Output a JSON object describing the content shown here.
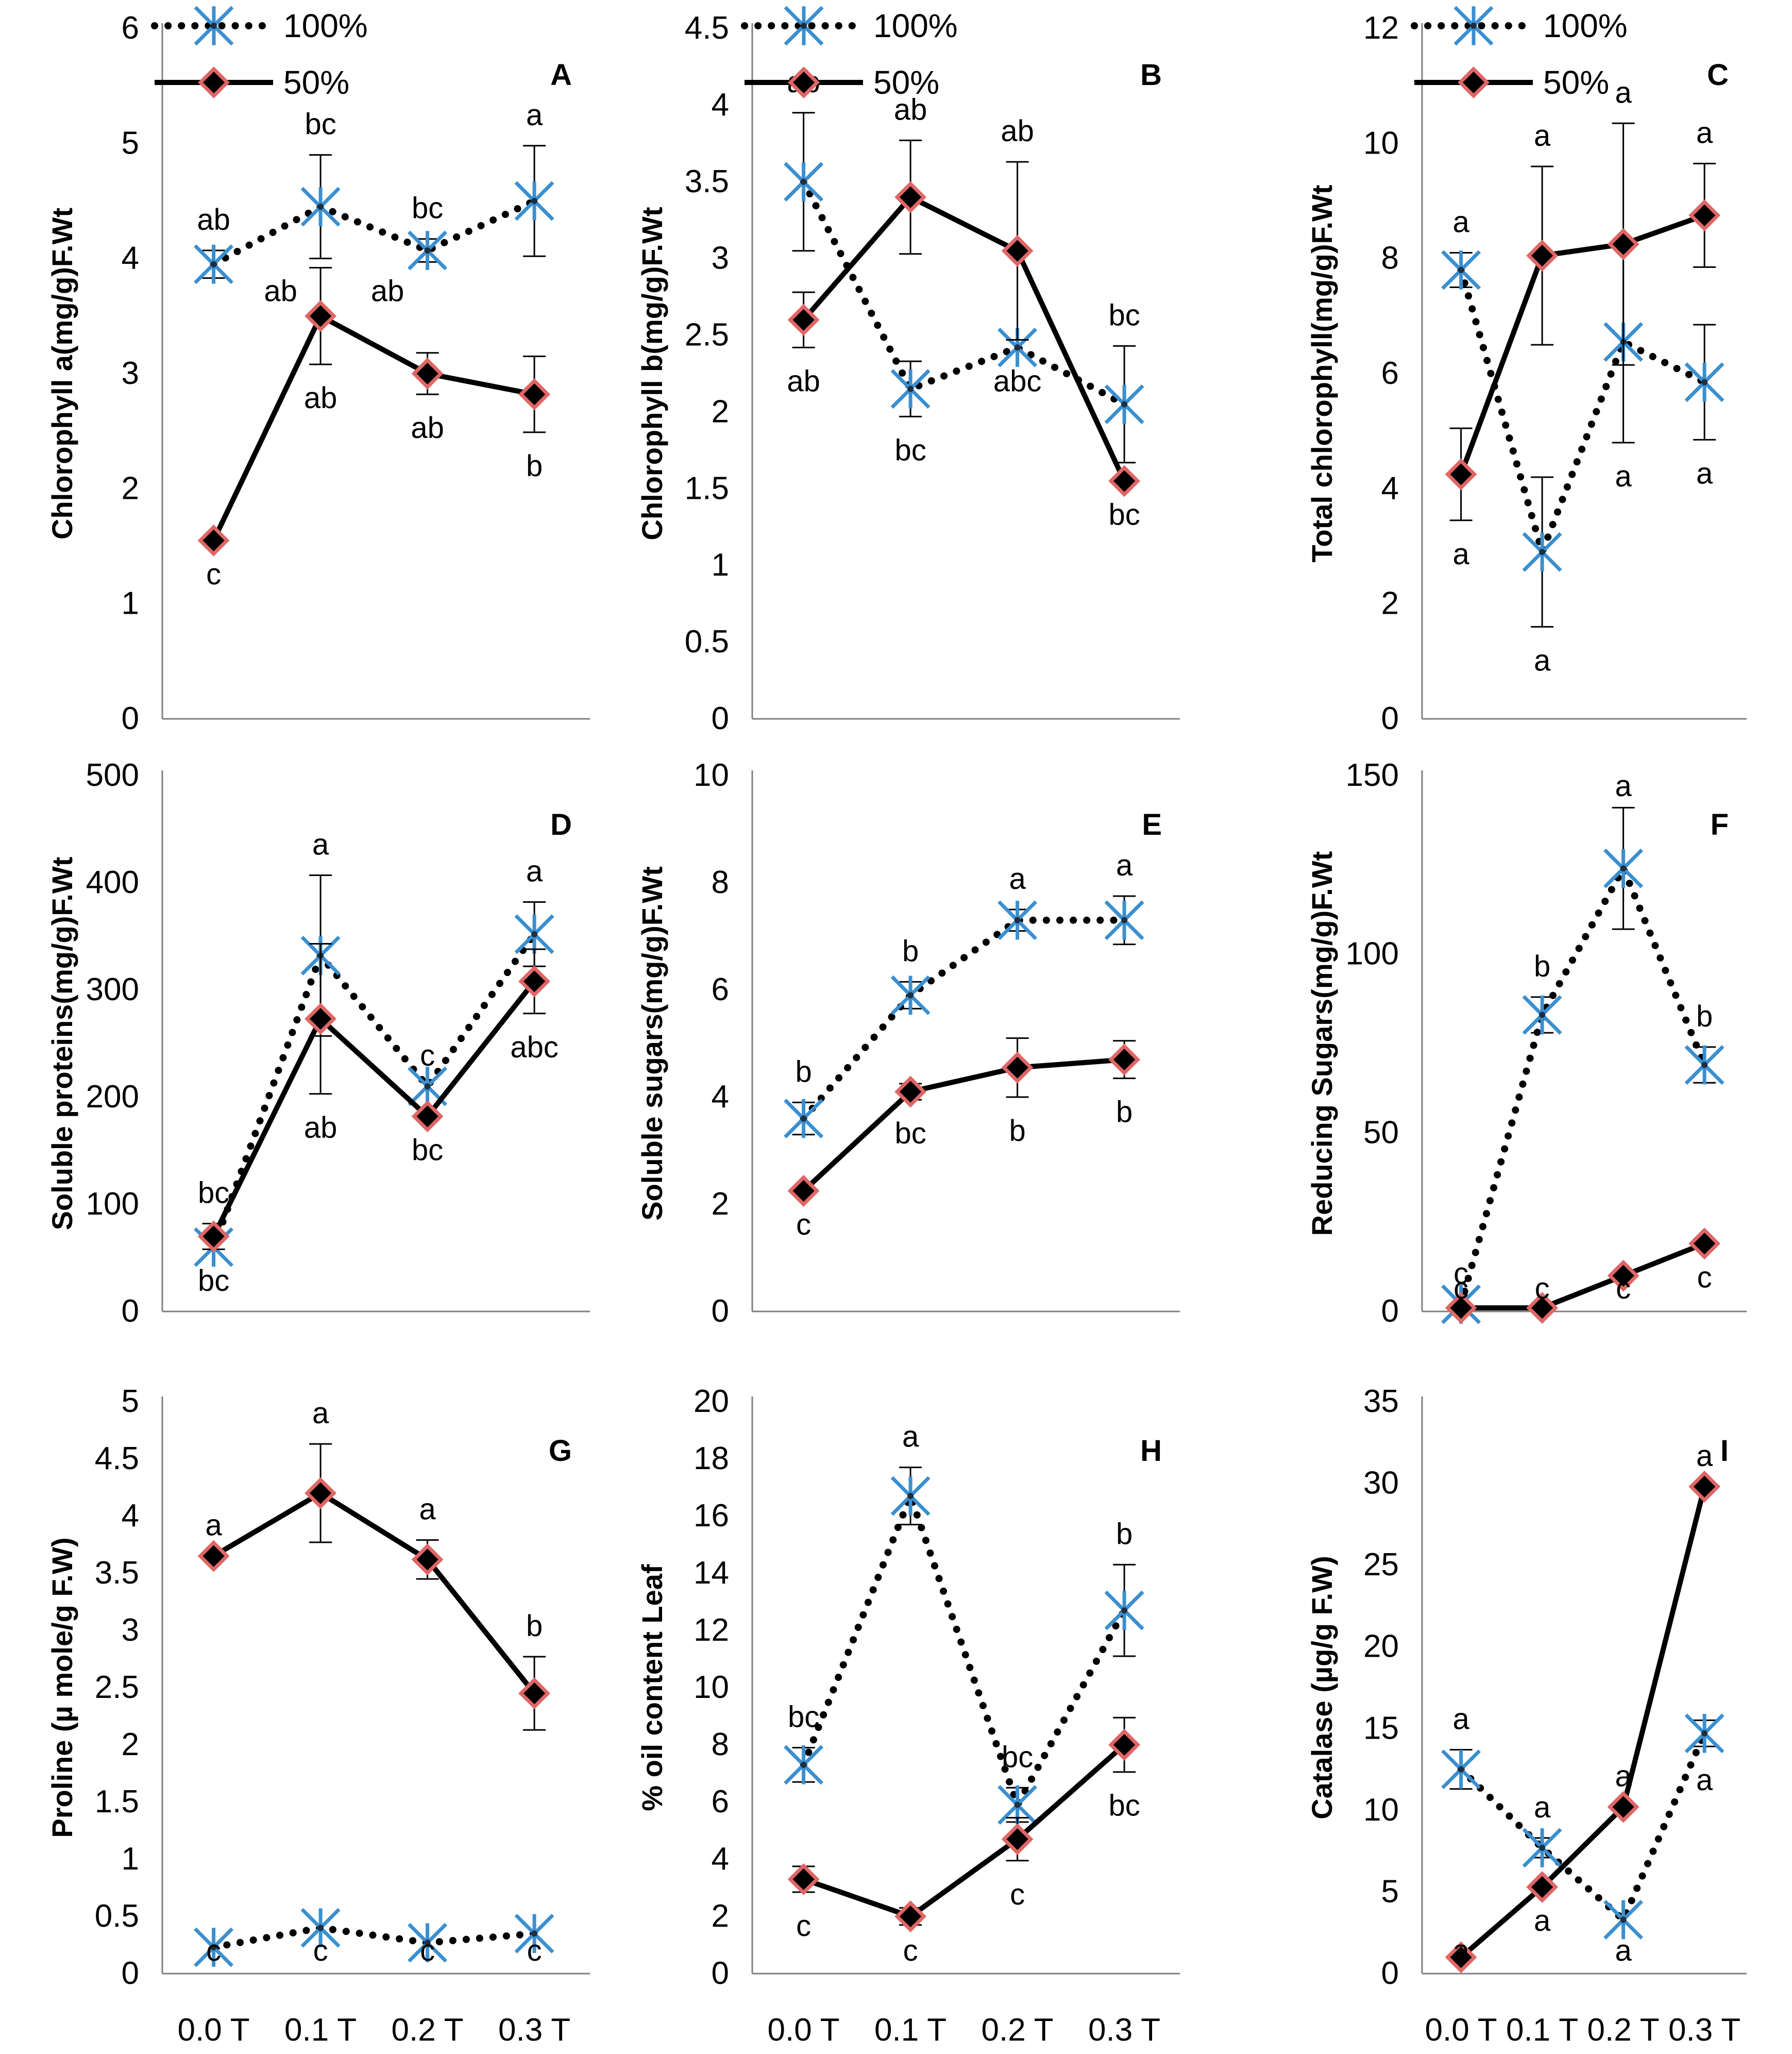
{
  "colors": {
    "series_100_marker": "#3a8fd0",
    "series_50_marker_fill": "#000000",
    "series_50_marker_edge": "#e06666",
    "axis": "#7f7f7f"
  },
  "legend": {
    "items": [
      "100%",
      "50%"
    ]
  },
  "chart_data": [
    {
      "panel": "A",
      "type": "line",
      "categories": [
        "0.0 T",
        "0.1 T",
        "0.2 T",
        "0.3 T"
      ],
      "ylabel": "Chlorophyll a(mg/g)F.Wt",
      "ylim": [
        0,
        6
      ],
      "yticks": [
        "0",
        "1",
        "2",
        "3",
        "4",
        "5",
        "6"
      ],
      "show_legend": true,
      "series": [
        {
          "name": "100%",
          "values": [
            3.95,
            4.45,
            4.07,
            4.5
          ],
          "errors": [
            0.12,
            0.45,
            0.1,
            0.48
          ],
          "labels": [
            "ab",
            "bc",
            "bc",
            "a"
          ]
        },
        {
          "name": "50%",
          "values": [
            1.55,
            3.5,
            3.0,
            2.82
          ],
          "errors": [
            0.0,
            0.42,
            0.18,
            0.33
          ],
          "labels": [
            "c",
            "ab",
            "ab",
            "b"
          ]
        }
      ],
      "extra_labels": [
        "ab",
        "ab"
      ]
    },
    {
      "panel": "B",
      "type": "line",
      "categories": [
        "0.0 T",
        "0.1 T",
        "0.2 T",
        "0.3 T"
      ],
      "ylabel": "Chlorophyll b(mg/g)F.Wt",
      "ylim": [
        0,
        4.5
      ],
      "yticks": [
        "0",
        "0.5",
        "1",
        "1.5",
        "2",
        "2.5",
        "3",
        "3.5",
        "4",
        "4.5"
      ],
      "show_legend": true,
      "series": [
        {
          "name": "100%",
          "values": [
            3.5,
            2.15,
            2.42,
            2.05
          ],
          "errors": [
            0.45,
            0.18,
            0.0,
            0.38
          ],
          "labels": [
            "ab",
            "bc",
            "abc",
            "bc"
          ]
        },
        {
          "name": "50%",
          "values": [
            2.6,
            3.4,
            3.05,
            1.55
          ],
          "errors": [
            0.18,
            0.37,
            0.58,
            0.0
          ],
          "labels": [
            "ab",
            "ab",
            "ab",
            "bc"
          ]
        }
      ]
    },
    {
      "panel": "C",
      "type": "line",
      "categories": [
        "0.0 T",
        "0.1 T",
        "0.2 T",
        "0.3 T"
      ],
      "ylabel": "Total chlorophyll(mg/g)F.Wt",
      "ylim": [
        0,
        12
      ],
      "yticks": [
        "0",
        "2",
        "4",
        "6",
        "8",
        "10",
        "12"
      ],
      "show_legend": true,
      "series": [
        {
          "name": "100%",
          "values": [
            7.8,
            2.9,
            6.55,
            5.85
          ],
          "errors": [
            0.3,
            1.3,
            1.75,
            1.0
          ],
          "labels": [
            "a",
            "a",
            "a",
            "a"
          ]
        },
        {
          "name": "50%",
          "values": [
            4.25,
            8.05,
            8.25,
            8.75
          ],
          "errors": [
            0.8,
            1.55,
            2.1,
            0.9
          ],
          "labels": [
            "a",
            "a",
            "a",
            "a"
          ]
        }
      ]
    },
    {
      "panel": "D",
      "type": "line",
      "categories": [
        "0.0 T",
        "0.1 T",
        "0.2 T",
        "0.3 T"
      ],
      "ylabel": "Soluble proteins(mg/g)F.Wt",
      "ylim": [
        0,
        500
      ],
      "yticks": [
        "0",
        "100",
        "200",
        "300",
        "400",
        "500"
      ],
      "show_legend": false,
      "series": [
        {
          "name": "100%",
          "values": [
            60,
            332,
            210,
            352
          ],
          "errors": [
            0,
            75,
            0,
            30
          ],
          "labels": [
            "bc",
            "a",
            "c",
            "a"
          ]
        },
        {
          "name": "50%",
          "values": [
            70,
            273,
            182,
            308
          ],
          "errors": [
            12,
            70,
            0,
            30
          ],
          "labels": [
            "bc",
            "ab",
            "bc",
            "abc"
          ]
        }
      ]
    },
    {
      "panel": "E",
      "type": "line",
      "categories": [
        "0.0 T",
        "0.1 T",
        "0.2 T",
        "0.3 T"
      ],
      "ylabel": "Soluble sugars(mg/g)F.Wt",
      "ylim": [
        0,
        10
      ],
      "yticks": [
        "0",
        "2",
        "4",
        "6",
        "8",
        "10"
      ],
      "show_legend": false,
      "series": [
        {
          "name": "100%",
          "values": [
            3.6,
            5.9,
            7.3,
            7.3
          ],
          "errors": [
            0.3,
            0.25,
            0.2,
            0.45
          ],
          "labels": [
            "b",
            "b",
            "a",
            "a"
          ]
        },
        {
          "name": "50%",
          "values": [
            2.25,
            4.1,
            4.55,
            4.7
          ],
          "errors": [
            0,
            0.15,
            0.55,
            0.35
          ],
          "labels": [
            "c",
            "bc",
            "b",
            "b"
          ]
        }
      ]
    },
    {
      "panel": "F",
      "type": "line",
      "categories": [
        "0.0 T",
        "0.1 T",
        "0.2 T",
        "0.3 T"
      ],
      "ylabel": "Reducing Sugars(mg/g)F.Wt",
      "ylim": [
        0,
        150
      ],
      "yticks": [
        "0",
        "50",
        "100",
        "150"
      ],
      "show_legend": false,
      "series": [
        {
          "name": "100%",
          "values": [
            2,
            83,
            124,
            69
          ],
          "errors": [
            0,
            5,
            17,
            5
          ],
          "labels": [
            "c",
            "b",
            "a",
            "b"
          ]
        },
        {
          "name": "50%",
          "values": [
            1,
            1,
            10,
            19
          ],
          "errors": [
            0,
            0,
            0,
            0
          ],
          "labels": [
            "c",
            "c",
            "c",
            "c"
          ]
        }
      ]
    },
    {
      "panel": "G",
      "type": "line",
      "categories": [
        "0.0 T",
        "0.1 T",
        "0.2 T",
        "0.3 T"
      ],
      "ylabel": "Proline (µ mole/g F.W)",
      "ylim": [
        0,
        5
      ],
      "yticks": [
        "0",
        "0.5",
        "1",
        "1.5",
        "2",
        "2.5",
        "3",
        "3.5",
        "4",
        "4.5",
        "5"
      ],
      "show_legend": false,
      "series": [
        {
          "name": "100%",
          "values": [
            0.23,
            0.4,
            0.27,
            0.35
          ],
          "errors": [
            0,
            0,
            0,
            0
          ],
          "labels": [
            "c",
            "c",
            "c",
            "c"
          ]
        },
        {
          "name": "50%",
          "values": [
            3.65,
            4.2,
            3.62,
            2.45
          ],
          "errors": [
            0,
            0.43,
            0.17,
            0.32
          ],
          "labels": [
            "a",
            "a",
            "a",
            "b"
          ]
        }
      ]
    },
    {
      "panel": "H",
      "type": "line",
      "categories": [
        "0.0 T",
        "0.1 T",
        "0.2 T",
        "0.3 T"
      ],
      "ylabel": "% oil content Leaf",
      "ylim": [
        0,
        20
      ],
      "yticks": [
        "0",
        "2",
        "4",
        "6",
        "8",
        "10",
        "12",
        "14",
        "16",
        "18",
        "20"
      ],
      "show_legend": false,
      "series": [
        {
          "name": "100%",
          "values": [
            7.3,
            16.7,
            5.9,
            12.7
          ],
          "errors": [
            0.6,
            1.0,
            0.6,
            1.6
          ],
          "labels": [
            "bc",
            "a",
            "bc",
            "b"
          ]
        },
        {
          "name": "50%",
          "values": [
            3.3,
            2.0,
            4.7,
            8.0
          ],
          "errors": [
            0.45,
            0.3,
            0.75,
            0.95
          ],
          "labels": [
            "c",
            "c",
            "c",
            "bc"
          ]
        }
      ]
    },
    {
      "panel": "I",
      "type": "line",
      "categories": [
        "0.0 T",
        "0.1 T",
        "0.2 T",
        "0.3 T"
      ],
      "ylabel": "Catalase (µg/g F.W)",
      "ylim": [
        0,
        35
      ],
      "yticks": [
        "0",
        "5",
        "10",
        "15",
        "20",
        "25",
        "30",
        "35"
      ],
      "show_legend": false,
      "series": [
        {
          "name": "100%",
          "values": [
            12.5,
            7.7,
            3.3,
            14.7
          ],
          "errors": [
            1.2,
            0.6,
            0,
            0.8
          ],
          "labels": [
            "a",
            "a",
            "a",
            "a"
          ]
        },
        {
          "name": "50%",
          "values": [
            1.0,
            5.3,
            10.2,
            29.8
          ],
          "errors": [
            0,
            0,
            0,
            0
          ],
          "labels": [
            "a",
            "a",
            "a",
            "a"
          ]
        }
      ]
    }
  ]
}
